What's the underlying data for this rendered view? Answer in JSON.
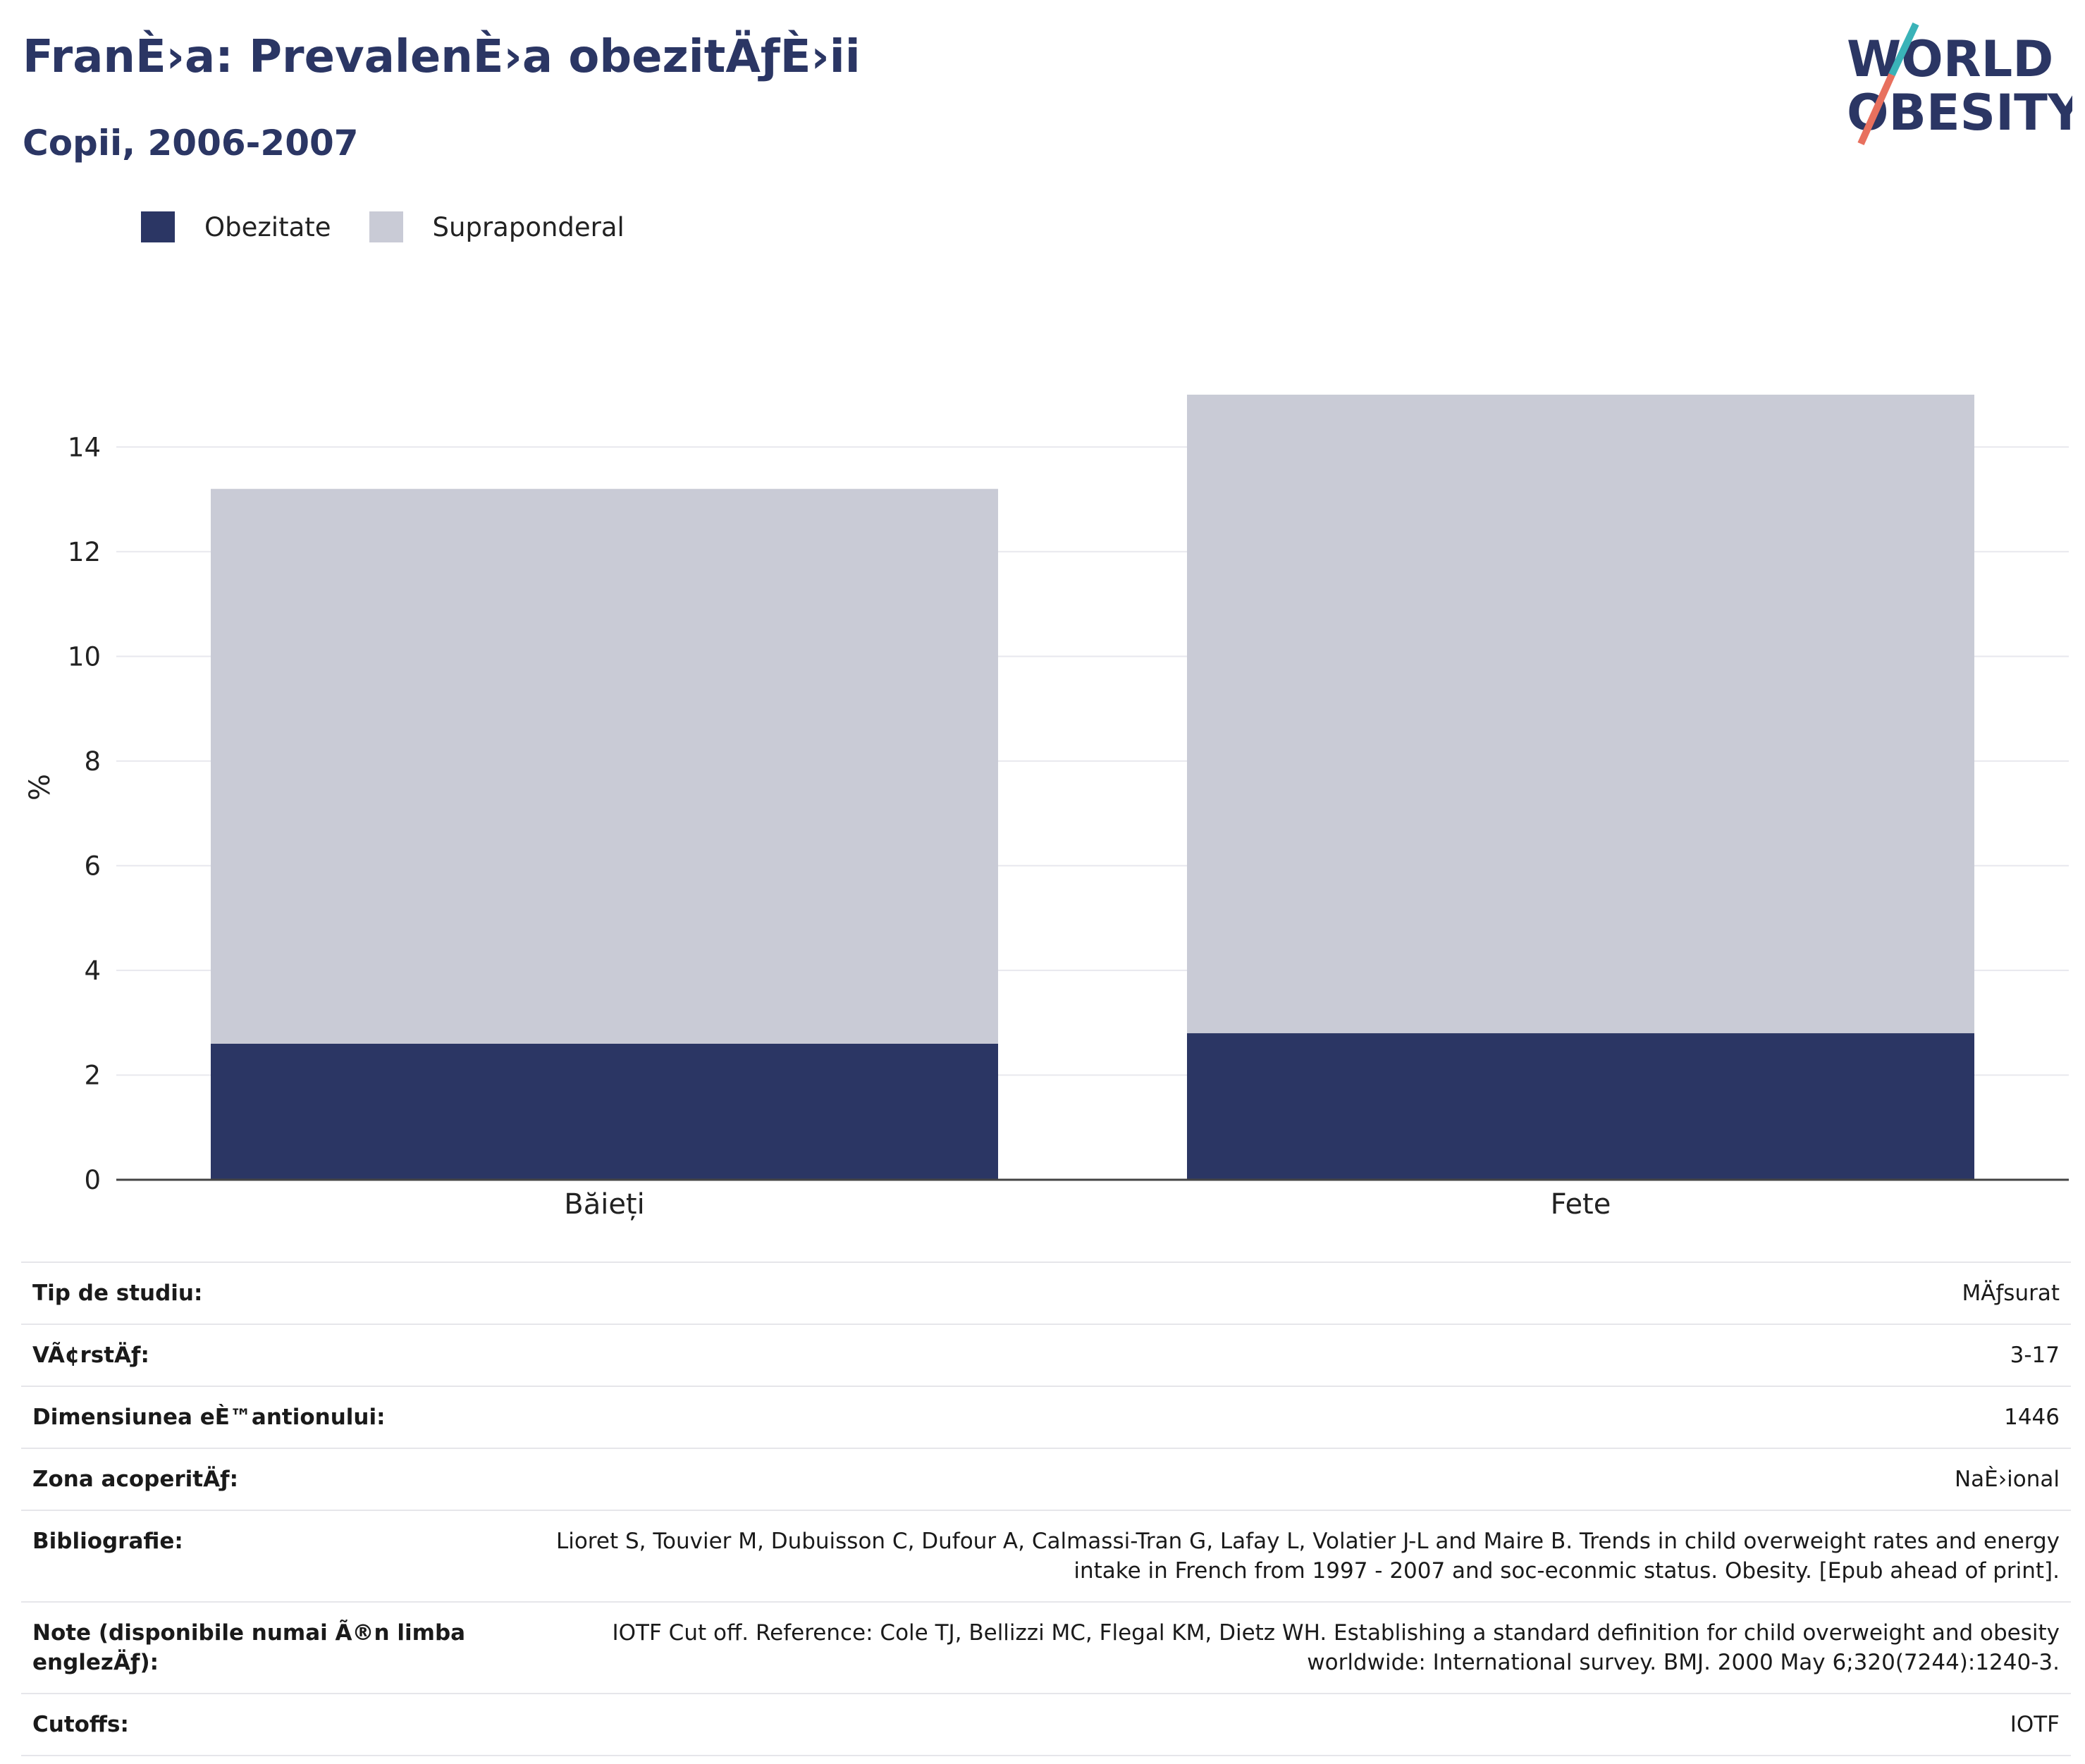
{
  "title": "FranÈ›a: PrevalenÈ›a obezitÄƒÈ›ii",
  "subtitle": "Copii, 2006-2007",
  "logo": {
    "line1": "WORLD",
    "line2": "OBESITY"
  },
  "colors": {
    "obesity": "#2b3664",
    "overweight": "#c9cbd6",
    "title": "#2b3664",
    "logo_teal": "#3ab3b8",
    "logo_coral": "#e8705e"
  },
  "legend": [
    {
      "label": "Obezitate",
      "color": "#2b3664"
    },
    {
      "label": "Supraponderal",
      "color": "#c9cbd6"
    }
  ],
  "chart_data": {
    "type": "bar",
    "stacked": true,
    "categories": [
      "Băieți",
      "Fete"
    ],
    "series": [
      {
        "name": "Obezitate",
        "values": [
          2.6,
          2.8
        ]
      },
      {
        "name": "Supraponderal",
        "values": [
          10.6,
          12.2
        ]
      }
    ],
    "totals": [
      13.2,
      15.0
    ],
    "ylabel": "%",
    "ylim": [
      0,
      15
    ],
    "yticks": [
      0,
      2,
      4,
      6,
      8,
      10,
      12,
      14
    ],
    "grid": true,
    "legend_position": "top-left"
  },
  "info_table": [
    {
      "label": "Tip de studiu:",
      "value": "MÄƒsurat"
    },
    {
      "label": "VÃ¢rstÄƒ:",
      "value": "3-17"
    },
    {
      "label": "Dimensiunea eÈ™antionului:",
      "value": "1446"
    },
    {
      "label": "Zona acoperitÄƒ:",
      "value": "NaÈ›ional"
    },
    {
      "label": "Bibliografie:",
      "value": "Lioret S, Touvier M, Dubuisson C, Dufour A, Calmassi-Tran G, Lafay L, Volatier J-L and Maire B. Trends in child overweight rates and energy intake in French from 1997 - 2007 and soc-econmic status. Obesity. [Epub ahead of print]."
    },
    {
      "label": "Note (disponibile numai Ã®n limba englezÄƒ):",
      "value": "IOTF Cut off. Reference: Cole TJ, Bellizzi MC, Flegal KM, Dietz WH. Establishing a standard definition for child overweight and obesity worldwide: International survey. BMJ. 2000 May 6;320(7244):1240-3."
    },
    {
      "label": "Cutoffs:",
      "value": "IOTF"
    }
  ]
}
